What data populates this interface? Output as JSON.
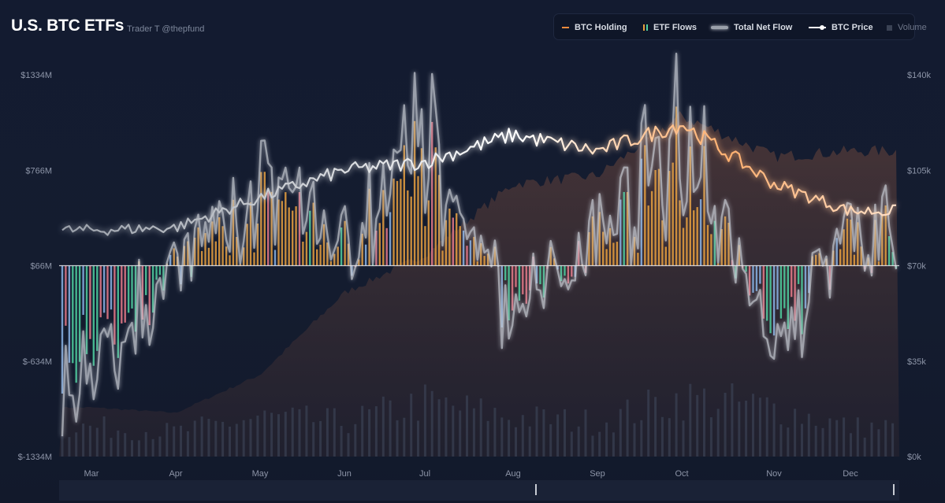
{
  "header": {
    "title": "U.S. BTC ETFs",
    "subtitle": "Trader T @thepfund"
  },
  "legend": {
    "btc_holding": "BTC Holding",
    "etf_flows": "ETF Flows",
    "total_net_flow": "Total Net Flow",
    "btc_price": "BTC Price",
    "volume": "Volume"
  },
  "colors": {
    "holding": "#f08a3c",
    "net_flow": "#c8ccd4",
    "price": "#ffffff",
    "volume": "#3a4254",
    "flow_a": "#e8a040",
    "flow_b": "#4fd0a0",
    "flow_c": "#e87a8a",
    "flow_d": "#8ab4e8"
  },
  "chart_data": {
    "type": "line",
    "title": "U.S. BTC ETFs",
    "x_labels": [
      "Mar",
      "Apr",
      "May",
      "Jun",
      "Jul",
      "Aug",
      "Sep",
      "Oct",
      "Nov",
      "Dec"
    ],
    "left_axis": {
      "ticks": [
        "$1334M",
        "$766M",
        "$66M",
        "$-634M",
        "$-1334M"
      ],
      "range": [
        -1334,
        1334
      ]
    },
    "right_axis": {
      "ticks": [
        "$140k",
        "$105k",
        "$70k",
        "$35k",
        "$0k"
      ],
      "range": [
        0,
        140000
      ]
    },
    "series": [
      {
        "name": "BTC Price",
        "axis": "right",
        "x": [
          "Mar",
          "Apr",
          "May",
          "Jun",
          "Jul",
          "Aug",
          "Sep",
          "Oct",
          "Nov",
          "Dec"
        ],
        "values": [
          83000,
          84000,
          95000,
          105000,
          108000,
          118000,
          112000,
          122000,
          100000,
          90000
        ]
      },
      {
        "name": "BTC Holding",
        "axis": "right",
        "x": [
          "Mar",
          "Apr",
          "May",
          "Jun",
          "Jul",
          "Aug",
          "Sep",
          "Oct",
          "Nov",
          "Dec"
        ],
        "values": [
          18000,
          16000,
          30000,
          60000,
          74000,
          100000,
          103000,
          125000,
          110000,
          112000
        ]
      },
      {
        "name": "Total Net Flow",
        "axis": "left",
        "x": [
          "Mar",
          "Apr",
          "May",
          "Jun",
          "Jul",
          "Aug",
          "Sep",
          "Oct",
          "Nov",
          "Dec"
        ],
        "values": [
          -900,
          -50,
          700,
          150,
          1150,
          -500,
          300,
          1200,
          -700,
          260
        ]
      },
      {
        "name": "Volume",
        "axis": "left",
        "x": [
          "Mar",
          "Apr",
          "May",
          "Jun",
          "Jul",
          "Aug",
          "Sep",
          "Oct",
          "Nov",
          "Dec"
        ],
        "values": [
          3000,
          2500,
          4000,
          3500,
          5500,
          4000,
          3500,
          6000,
          5000,
          3000
        ]
      }
    ],
    "grid": false,
    "legend_position": "top-right"
  }
}
